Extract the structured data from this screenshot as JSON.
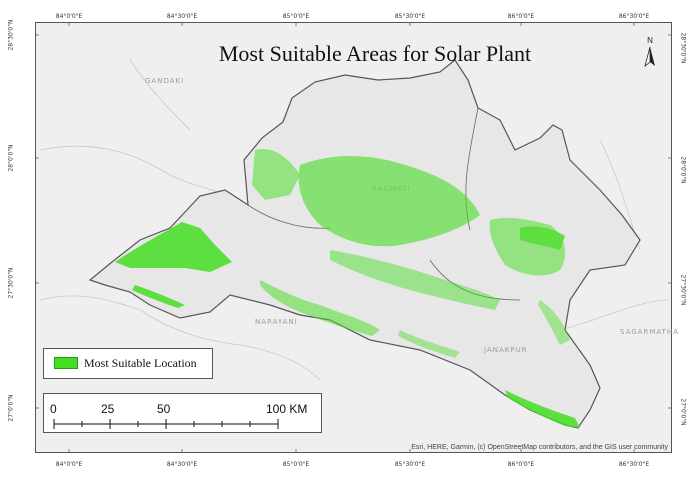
{
  "map": {
    "title": "Most Suitable Areas for Solar Plant",
    "top_ticks": [
      "84°0'0\"E",
      "84°30'0\"E",
      "85°0'0\"E",
      "85°30'0\"E",
      "86°0'0\"E",
      "86°30'0\"E"
    ],
    "bottom_ticks": [
      "84°0'0\"E",
      "84°30'0\"E",
      "85°0'0\"E",
      "85°30'0\"E",
      "86°0'0\"E",
      "86°30'0\"E"
    ],
    "left_ticks": [
      "28°30'0\"N",
      "28°0'0\"N",
      "27°30'0\"N",
      "27°0'0\"N"
    ],
    "right_ticks": [
      "28°30'0\"N",
      "28°0'0\"N",
      "27°30'0\"N",
      "27°0'0\"N"
    ],
    "region_labels": [
      "GANDAKI",
      "NARAYANI",
      "JANAKPUR",
      "SAGARMATHA",
      "BAGMATI"
    ],
    "north_label": "N",
    "legend": {
      "label": "Most Suitable Location",
      "color": "#44dd22"
    },
    "scale": {
      "labels": [
        "0",
        "25",
        "50",
        "100 KM"
      ]
    },
    "attribution": "Esri, HERE, Garmin, (c) OpenStreetMap contributors, and the GIS user community",
    "colors": {
      "suitable": "#44dd22",
      "background": "#efefef",
      "boundary": "#555555"
    }
  }
}
